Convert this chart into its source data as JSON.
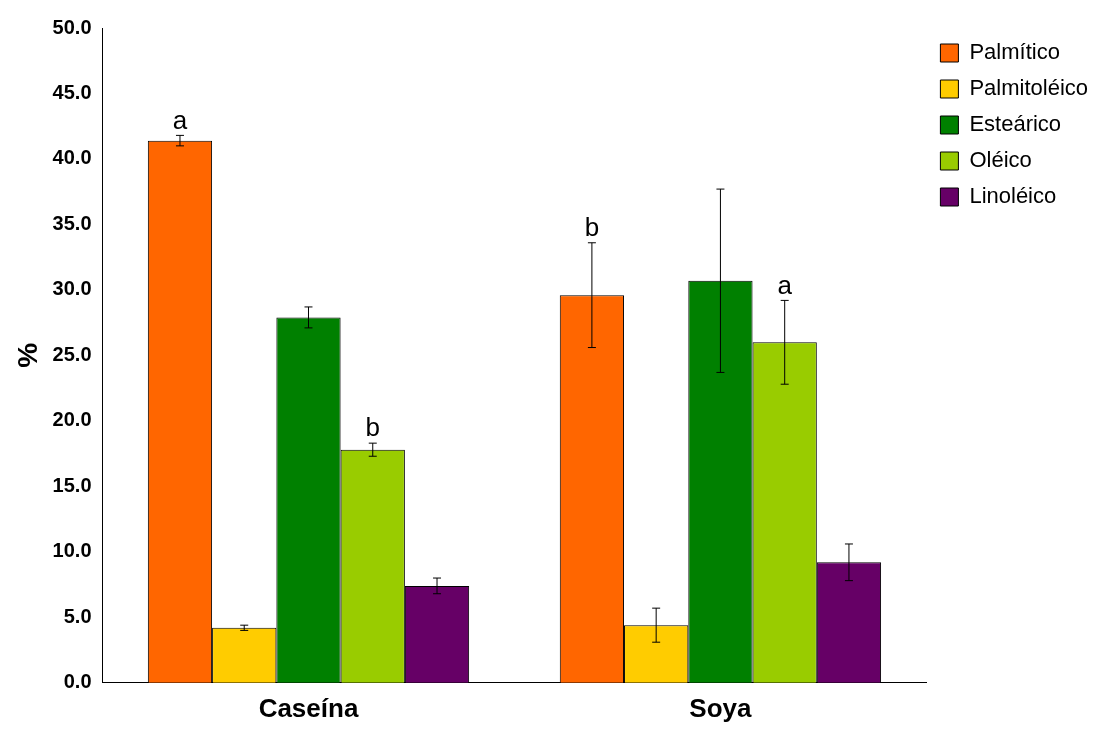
{
  "chart_data": {
    "type": "bar",
    "ylabel": "%",
    "categories": [
      "Caseína",
      "Soya"
    ],
    "series": [
      {
        "name": "Palmítico",
        "color": "#ff6600",
        "values": [
          41.4,
          29.6
        ],
        "errors": [
          0.4,
          4.0
        ],
        "value_labels": [
          "a",
          "b"
        ]
      },
      {
        "name": "Palmitoléico",
        "color": "#ffcc00",
        "values": [
          4.2,
          4.4
        ],
        "errors": [
          0.2,
          1.3
        ]
      },
      {
        "name": "Esteárico",
        "color": "#008000",
        "values": [
          27.9,
          30.7
        ],
        "errors": [
          0.8,
          7.0
        ]
      },
      {
        "name": "Oléico",
        "color": "#99cc00",
        "values": [
          17.8,
          26.0
        ],
        "errors": [
          0.5,
          3.2
        ],
        "value_labels": [
          "b",
          "a"
        ]
      },
      {
        "name": "Linoléico",
        "color": "#660066",
        "values": [
          7.4,
          9.2
        ],
        "errors": [
          0.6,
          1.4
        ]
      }
    ],
    "ylim": [
      0,
      50
    ],
    "yticks": [
      {
        "value": 0,
        "label": "0.0"
      },
      {
        "value": 5,
        "label": "5.0"
      },
      {
        "value": 10,
        "label": "10.0"
      },
      {
        "value": 15,
        "label": "15.0"
      },
      {
        "value": 20,
        "label": "20.0"
      },
      {
        "value": 25,
        "label": "25.0"
      },
      {
        "value": 30,
        "label": "30.0"
      },
      {
        "value": 35,
        "label": "35.0"
      },
      {
        "value": 40,
        "label": "40.0"
      },
      {
        "value": 45,
        "label": "45.0"
      },
      {
        "value": 50,
        "label": "50.0"
      }
    ],
    "grid": false,
    "legend": "top right"
  }
}
